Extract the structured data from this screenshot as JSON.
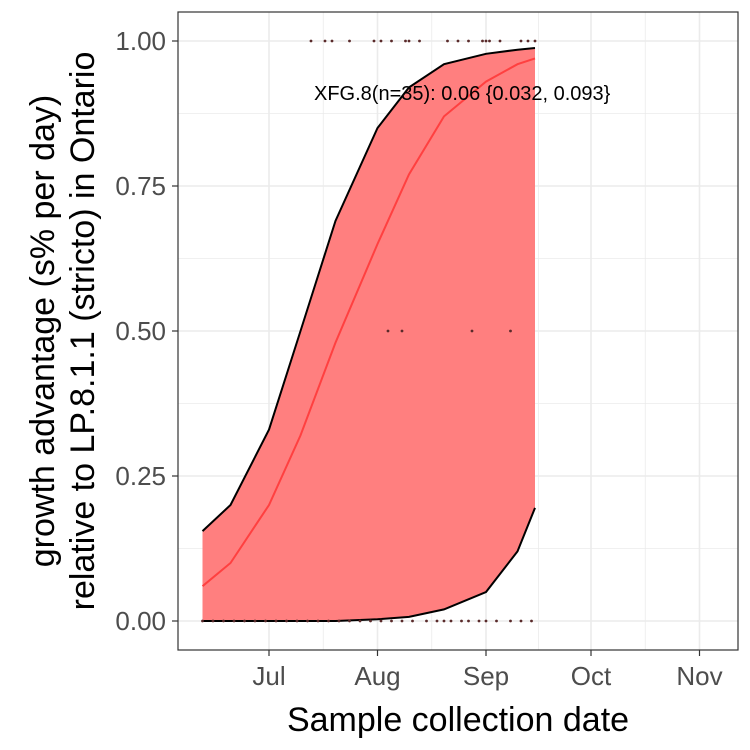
{
  "chart_data": {
    "type": "line",
    "xlabel": "Sample collection date",
    "ylabel_lines": [
      "growth advantage (s% per day)",
      "relative to LP.8.1.1 (stricto) in Ontario"
    ],
    "annotation": "XFG.8(n=35): 0.06 {0.032, 0.093}",
    "x_ticks": [
      {
        "label": "Jul",
        "date": "2025-07-01"
      },
      {
        "label": "Aug",
        "date": "2025-08-01"
      },
      {
        "label": "Sep",
        "date": "2025-09-01"
      },
      {
        "label": "Oct",
        "date": "2025-10-01"
      },
      {
        "label": "Nov",
        "date": "2025-11-01"
      }
    ],
    "y_ticks": [
      0.0,
      0.25,
      0.5,
      0.75,
      1.0
    ],
    "y_tick_labels": [
      "0.00",
      "0.25",
      "0.50",
      "0.75",
      "1.00"
    ],
    "xlim": [
      "2025-06-05",
      "2025-11-12"
    ],
    "ylim": [
      -0.05,
      1.05
    ],
    "grid": true,
    "series": [
      {
        "x": [
          "2025-06-12",
          "2025-06-20",
          "2025-07-01",
          "2025-07-10",
          "2025-07-20",
          "2025-08-01",
          "2025-08-10",
          "2025-08-20",
          "2025-09-01",
          "2025-09-10",
          "2025-09-15"
        ],
        "fit": [
          0.06,
          0.1,
          0.2,
          0.32,
          0.48,
          0.65,
          0.77,
          0.87,
          0.93,
          0.96,
          0.97
        ],
        "lower": [
          0.0,
          0.0,
          0.0,
          0.0,
          0.0,
          0.003,
          0.007,
          0.02,
          0.05,
          0.12,
          0.195
        ],
        "upper": [
          0.155,
          0.2,
          0.33,
          0.5,
          0.69,
          0.85,
          0.92,
          0.96,
          0.978,
          0.985,
          0.988
        ]
      }
    ],
    "observations": [
      {
        "x": "2025-06-12",
        "y": 0.0
      },
      {
        "x": "2025-06-15",
        "y": 0.0
      },
      {
        "x": "2025-06-18",
        "y": 0.0
      },
      {
        "x": "2025-06-21",
        "y": 0.0
      },
      {
        "x": "2025-06-24",
        "y": 0.0
      },
      {
        "x": "2025-06-27",
        "y": 0.0
      },
      {
        "x": "2025-06-30",
        "y": 0.0
      },
      {
        "x": "2025-07-03",
        "y": 0.0
      },
      {
        "x": "2025-07-06",
        "y": 0.0
      },
      {
        "x": "2025-07-09",
        "y": 0.0
      },
      {
        "x": "2025-07-12",
        "y": 0.0
      },
      {
        "x": "2025-07-15",
        "y": 0.0
      },
      {
        "x": "2025-07-18",
        "y": 0.0
      },
      {
        "x": "2025-07-21",
        "y": 0.0
      },
      {
        "x": "2025-07-24",
        "y": 0.0
      },
      {
        "x": "2025-07-27",
        "y": 0.0
      },
      {
        "x": "2025-07-30",
        "y": 0.0
      },
      {
        "x": "2025-08-02",
        "y": 0.0
      },
      {
        "x": "2025-08-05",
        "y": 0.0
      },
      {
        "x": "2025-08-08",
        "y": 0.0
      },
      {
        "x": "2025-08-11",
        "y": 0.0
      },
      {
        "x": "2025-08-15",
        "y": 0.0
      },
      {
        "x": "2025-08-18",
        "y": 0.0
      },
      {
        "x": "2025-08-20",
        "y": 0.0
      },
      {
        "x": "2025-08-22",
        "y": 0.0
      },
      {
        "x": "2025-08-25",
        "y": 0.0
      },
      {
        "x": "2025-08-27",
        "y": 0.0
      },
      {
        "x": "2025-08-30",
        "y": 0.0
      },
      {
        "x": "2025-09-01",
        "y": 0.0
      },
      {
        "x": "2025-09-04",
        "y": 0.0
      },
      {
        "x": "2025-09-08",
        "y": 0.0
      },
      {
        "x": "2025-09-11",
        "y": 0.0
      },
      {
        "x": "2025-09-14",
        "y": 0.0
      },
      {
        "x": "2025-08-04",
        "y": 0.5
      },
      {
        "x": "2025-08-08",
        "y": 0.5
      },
      {
        "x": "2025-08-28",
        "y": 0.5
      },
      {
        "x": "2025-09-08",
        "y": 0.5
      },
      {
        "x": "2025-07-13",
        "y": 1.0
      },
      {
        "x": "2025-07-17",
        "y": 1.0
      },
      {
        "x": "2025-07-19",
        "y": 1.0
      },
      {
        "x": "2025-07-24",
        "y": 1.0
      },
      {
        "x": "2025-07-31",
        "y": 1.0
      },
      {
        "x": "2025-08-02",
        "y": 1.0
      },
      {
        "x": "2025-08-05",
        "y": 1.0
      },
      {
        "x": "2025-08-09",
        "y": 1.0
      },
      {
        "x": "2025-08-10",
        "y": 1.0
      },
      {
        "x": "2025-08-13",
        "y": 1.0
      },
      {
        "x": "2025-08-21",
        "y": 1.0
      },
      {
        "x": "2025-08-24",
        "y": 1.0
      },
      {
        "x": "2025-08-27",
        "y": 1.0
      },
      {
        "x": "2025-08-31",
        "y": 1.0
      },
      {
        "x": "2025-09-01",
        "y": 1.0
      },
      {
        "x": "2025-09-02",
        "y": 1.0
      },
      {
        "x": "2025-09-05",
        "y": 1.0
      },
      {
        "x": "2025-09-11",
        "y": 1.0
      },
      {
        "x": "2025-09-13",
        "y": 1.0
      },
      {
        "x": "2025-09-15",
        "y": 1.0
      }
    ],
    "colors": {
      "ribbon": "#ff7f7f",
      "fit_line": "#ff4040",
      "bound_line": "#000000",
      "point": "#5a2a2a",
      "grid": "#ebebeb"
    }
  }
}
